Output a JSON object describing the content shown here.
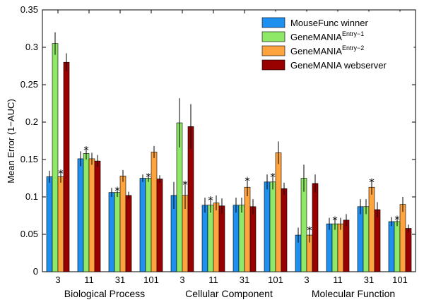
{
  "chart_data": {
    "type": "bar",
    "ylabel": "Mean Error (1−AUC)",
    "ylim": [
      0,
      0.35
    ],
    "yticks": [
      0,
      0.05,
      0.1,
      0.15,
      0.2,
      0.25,
      0.3,
      0.35
    ],
    "ytick_labels": [
      "0",
      "0.05",
      "0.1",
      "0.15",
      "0.2",
      "0.25",
      "0.3",
      "0.35"
    ],
    "categories": [
      "3",
      "11",
      "31",
      "101",
      "3",
      "11",
      "31",
      "101",
      "3",
      "11",
      "31",
      "101"
    ],
    "groups": [
      {
        "label": "Biological Process",
        "start": 0,
        "count": 4
      },
      {
        "label": "Cellular Component",
        "start": 4,
        "count": 4
      },
      {
        "label": "Molecular Function",
        "start": 8,
        "count": 4
      }
    ],
    "series": [
      {
        "name": "MouseFunc winner",
        "legend_main": "MouseFunc winner",
        "legend_sup": "",
        "color": "#1e90f0",
        "values": [
          0.127,
          0.151,
          0.106,
          0.125,
          0.102,
          0.089,
          0.089,
          0.12,
          0.049,
          0.064,
          0.087,
          0.067
        ],
        "errors": [
          0.008,
          0.01,
          0.006,
          0.005,
          0.018,
          0.01,
          0.01,
          0.01,
          0.01,
          0.008,
          0.01,
          0.006
        ]
      },
      {
        "name": "GeneMANIA Entry-1",
        "legend_main": "GeneMANIA",
        "legend_sup": "Entry−1",
        "color": "#8fe867",
        "values": [
          0.305,
          0.158,
          0.106,
          0.125,
          0.199,
          0.089,
          0.089,
          0.12,
          0.125,
          0.064,
          0.087,
          0.067
        ],
        "errors": [
          0.015,
          0.008,
          0.006,
          0.005,
          0.033,
          0.01,
          0.01,
          0.01,
          0.018,
          0.008,
          0.01,
          0.006
        ]
      },
      {
        "name": "GeneMANIA Entry-2",
        "legend_main": "GeneMANIA",
        "legend_sup": "Entry−2",
        "color": "#ffa33f",
        "values": [
          0.127,
          0.151,
          0.128,
          0.16,
          0.102,
          0.092,
          0.113,
          0.159,
          0.049,
          0.064,
          0.113,
          0.09
        ],
        "errors": [
          0.008,
          0.008,
          0.008,
          0.008,
          0.018,
          0.01,
          0.012,
          0.015,
          0.01,
          0.008,
          0.01,
          0.01
        ]
      },
      {
        "name": "GeneMANIA webserver",
        "legend_main": "GeneMANIA webserver",
        "legend_sup": "",
        "color": "#990000",
        "values": [
          0.28,
          0.148,
          0.102,
          0.124,
          0.194,
          0.088,
          0.087,
          0.111,
          0.118,
          0.069,
          0.083,
          0.058
        ],
        "errors": [
          0.012,
          0.008,
          0.005,
          0.005,
          0.03,
          0.01,
          0.01,
          0.008,
          0.012,
          0.008,
          0.01,
          0.005
        ]
      }
    ],
    "annotations": [
      {
        "text": "*",
        "category_index": 0,
        "series_index": 2
      },
      {
        "text": "*",
        "category_index": 1,
        "series_index": 1
      },
      {
        "text": "*",
        "category_index": 2,
        "series_index": 1
      },
      {
        "text": "*",
        "category_index": 3,
        "series_index": 1
      },
      {
        "text": "*",
        "category_index": 4,
        "series_index": 2
      },
      {
        "text": "*",
        "category_index": 5,
        "series_index": 1
      },
      {
        "text": "*",
        "category_index": 6,
        "series_index": 2
      },
      {
        "text": "*",
        "category_index": 7,
        "series_index": 1
      },
      {
        "text": "*",
        "category_index": 8,
        "series_index": 2
      },
      {
        "text": "*",
        "category_index": 9,
        "series_index": 1
      },
      {
        "text": "*",
        "category_index": 10,
        "series_index": 2
      },
      {
        "text": "*",
        "category_index": 11,
        "series_index": 1
      }
    ],
    "legend_position": "top-right"
  }
}
